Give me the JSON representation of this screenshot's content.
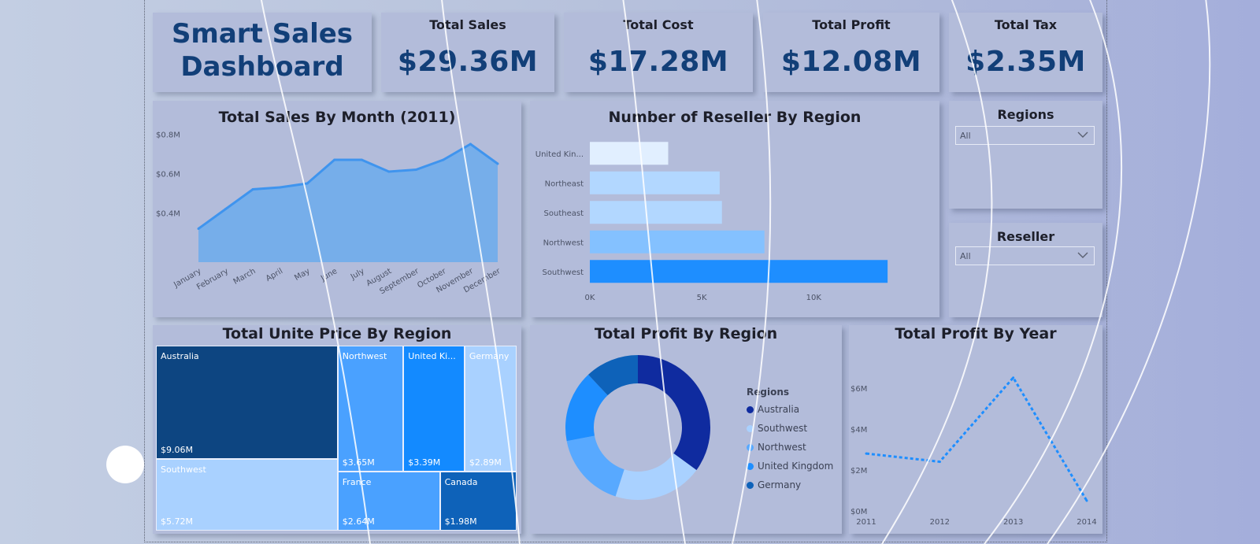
{
  "dashboard": {
    "title_line1": "Smart Sales",
    "title_line2": "Dashboard"
  },
  "kpis": [
    {
      "label": "Total Sales",
      "value": "$29.36M"
    },
    {
      "label": "Total Cost",
      "value": "$17.28M"
    },
    {
      "label": "Total Profit",
      "value": "$12.08M"
    },
    {
      "label": "Total Tax",
      "value": "$2.35M"
    }
  ],
  "slicers": {
    "regions": {
      "label": "Regions",
      "selected": "All"
    },
    "reseller": {
      "label": "Reseller",
      "selected": "All"
    }
  },
  "colors": {
    "dark_navy": "#0d4581",
    "area_fill": "#76aeea",
    "area_line": "#3f94ee",
    "accent_blue": "#1e8eff"
  },
  "chart_data": [
    {
      "id": "sales_by_month",
      "type": "area",
      "title": "Total Sales By Month (2011)",
      "categories": [
        "January",
        "February",
        "March",
        "April",
        "May",
        "June",
        "July",
        "August",
        "September",
        "October",
        "November",
        "December"
      ],
      "values": [
        0.32,
        0.42,
        0.52,
        0.53,
        0.55,
        0.67,
        0.67,
        0.61,
        0.62,
        0.67,
        0.75,
        0.65
      ],
      "unit": "M",
      "ylim": [
        0.15,
        0.85
      ],
      "ytick_labels": [
        "$0.4M",
        "$0.6M",
        "$0.8M"
      ],
      "yticks": [
        0.4,
        0.6,
        0.8
      ],
      "grid": false
    },
    {
      "id": "reseller_by_region",
      "type": "bar",
      "orientation": "horizontal",
      "title": "Number of Reseller By Region",
      "categories": [
        "United Kin...",
        "Northeast",
        "Southeast",
        "Northwest",
        "Southwest"
      ],
      "values": [
        3500,
        5800,
        5900,
        7800,
        13300
      ],
      "colors": [
        "#e1efff",
        "#b2d7ff",
        "#b2d7ff",
        "#84c1ff",
        "#1e8eff"
      ],
      "xlim": [
        0,
        14000
      ],
      "xtick_labels": [
        "0K",
        "5K",
        "10K"
      ],
      "xticks": [
        0,
        5000,
        10000
      ]
    },
    {
      "id": "unit_price_by_region",
      "type": "treemap",
      "title": "Total Unite Price By Region",
      "items": [
        {
          "name": "Australia",
          "label": "$9.06M",
          "value": 9.06,
          "color": "#0d4581"
        },
        {
          "name": "Southwest",
          "label": "$5.72M",
          "value": 5.72,
          "color": "#a9d1ff"
        },
        {
          "name": "Northwest",
          "label": "$3.65M",
          "value": 3.65,
          "color": "#4aa1ff"
        },
        {
          "name": "United Ki...",
          "label": "$3.39M",
          "value": 3.39,
          "color": "#138aff"
        },
        {
          "name": "Germany",
          "label": "$2.89M",
          "value": 2.89,
          "color": "#a9d1ff"
        },
        {
          "name": "France",
          "label": "$2.64M",
          "value": 2.64,
          "color": "#4aa1ff"
        },
        {
          "name": "Canada",
          "label": "$1.98M",
          "value": 1.98,
          "color": "#0e62b9"
        }
      ]
    },
    {
      "id": "profit_by_region",
      "type": "pie",
      "donut": true,
      "title": "Total Profit By Region",
      "legend_title": "Regions",
      "legend_position": "right",
      "slices": [
        {
          "name": "Australia",
          "value": 35,
          "color": "#0f2b9f"
        },
        {
          "name": "Southwest",
          "value": 20,
          "color": "#a9d1ff"
        },
        {
          "name": "Northwest",
          "value": 17,
          "color": "#58a9ff"
        },
        {
          "name": "United Kingdom",
          "value": 16,
          "color": "#1e8eff"
        },
        {
          "name": "Germany",
          "value": 12,
          "color": "#0e62b9"
        }
      ]
    },
    {
      "id": "profit_by_year",
      "type": "line",
      "line_style": "dashed",
      "title": "Total Profit By Year",
      "x": [
        "2011",
        "2012",
        "2013",
        "2014"
      ],
      "values": [
        2.8,
        2.4,
        6.5,
        0.5
      ],
      "unit": "M",
      "ylim": [
        0,
        7
      ],
      "yticks": [
        0,
        2,
        4,
        6
      ],
      "ytick_labels": [
        "$0M",
        "$2M",
        "$4M",
        "$6M"
      ]
    }
  ]
}
